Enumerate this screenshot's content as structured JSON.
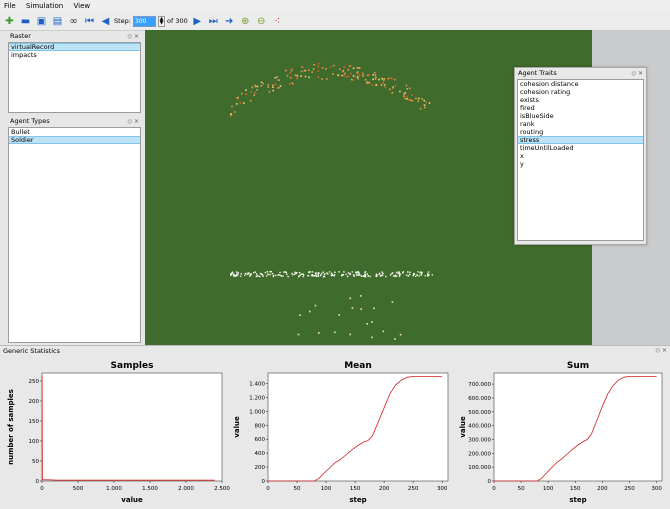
{
  "menu": {
    "file": "File",
    "simulation": "Simulation",
    "view": "View"
  },
  "toolbar": {
    "step_label": "Step:",
    "step_value": "300",
    "of_label": "of 300"
  },
  "raster_panel": {
    "title": "Raster",
    "items": [
      {
        "label": "virtualRecord",
        "selected": true
      },
      {
        "label": "impacts",
        "selected": false
      }
    ]
  },
  "agent_types_panel": {
    "title": "Agent Types",
    "items": [
      {
        "label": "Bullet",
        "selected": false
      },
      {
        "label": "Soldier",
        "selected": true
      }
    ]
  },
  "agent_traits_panel": {
    "title": "Agent Traits",
    "items": [
      {
        "label": "cohesion distance",
        "selected": false
      },
      {
        "label": "cohesion rating",
        "selected": false
      },
      {
        "label": "exists",
        "selected": false
      },
      {
        "label": "fired",
        "selected": false
      },
      {
        "label": "isBlueSide",
        "selected": false
      },
      {
        "label": "rank",
        "selected": false
      },
      {
        "label": "routing",
        "selected": false
      },
      {
        "label": "stress",
        "selected": true
      },
      {
        "label": "timeUntilLoaded",
        "selected": false
      },
      {
        "label": "x",
        "selected": false
      },
      {
        "label": "y",
        "selected": false
      }
    ]
  },
  "stats_panel": {
    "title": "Generic Statistics"
  },
  "colors": {
    "sim_background": "#3f6b2c",
    "line": "#d42020",
    "selection": "#bde3f7"
  },
  "chart_data": [
    {
      "type": "line",
      "title": "Samples",
      "xlabel": "value",
      "ylabel": "number of samples",
      "xlim": [
        0,
        2500
      ],
      "ylim": [
        0,
        270
      ],
      "xticks": [
        0,
        500,
        1000,
        1500,
        2000,
        2500
      ],
      "xtick_labels": [
        "0",
        "500",
        "1.000",
        "1.500",
        "2.000",
        "2.500"
      ],
      "yticks": [
        0,
        50,
        100,
        150,
        200,
        250
      ],
      "ytick_labels": [
        "0",
        "50",
        "100",
        "150",
        "200",
        "250"
      ],
      "x": [
        0,
        2,
        5,
        10,
        20,
        50,
        100,
        200,
        400,
        600,
        800,
        1000,
        1200,
        1400,
        1600,
        1800,
        2000,
        2200,
        2400
      ],
      "y": [
        262,
        262,
        4,
        3,
        3,
        3,
        3,
        2,
        2,
        2,
        2,
        2,
        2,
        2,
        2,
        2,
        2,
        2,
        2
      ]
    },
    {
      "type": "line",
      "title": "Mean",
      "xlabel": "step",
      "ylabel": "value",
      "xlim": [
        0,
        310
      ],
      "ylim": [
        0,
        1550
      ],
      "xticks": [
        0,
        50,
        100,
        150,
        200,
        250,
        300
      ],
      "xtick_labels": [
        "0",
        "50",
        "100",
        "150",
        "200",
        "250",
        "300"
      ],
      "yticks": [
        0,
        200,
        400,
        600,
        800,
        1000,
        1200,
        1400
      ],
      "ytick_labels": [
        "0",
        "200",
        "400",
        "600",
        "800",
        "1.000",
        "1.200",
        "1.400"
      ],
      "x": [
        0,
        40,
        80,
        88,
        95,
        105,
        115,
        125,
        135,
        145,
        155,
        165,
        172,
        180,
        190,
        200,
        210,
        220,
        230,
        240,
        250,
        260,
        270,
        280,
        290,
        300
      ],
      "y": [
        0,
        0,
        0,
        40,
        100,
        180,
        260,
        310,
        380,
        450,
        510,
        560,
        580,
        650,
        850,
        1050,
        1250,
        1380,
        1450,
        1490,
        1500,
        1500,
        1500,
        1500,
        1500,
        1500
      ]
    },
    {
      "type": "line",
      "title": "Sum",
      "xlabel": "step",
      "ylabel": "value",
      "xlim": [
        0,
        310
      ],
      "ylim": [
        0,
        780000
      ],
      "xticks": [
        0,
        50,
        100,
        150,
        200,
        250,
        300
      ],
      "xtick_labels": [
        "0",
        "50",
        "100",
        "150",
        "200",
        "250",
        "300"
      ],
      "yticks": [
        0,
        100000,
        200000,
        300000,
        400000,
        500000,
        600000,
        700000
      ],
      "ytick_labels": [
        "0",
        "100.000",
        "200.000",
        "300.000",
        "400.000",
        "500.000",
        "600.000",
        "700.000"
      ],
      "x": [
        0,
        40,
        80,
        88,
        95,
        105,
        115,
        125,
        135,
        145,
        155,
        165,
        172,
        180,
        190,
        200,
        210,
        220,
        230,
        240,
        250,
        260,
        270,
        280,
        290,
        300
      ],
      "y": [
        0,
        0,
        0,
        20000,
        50000,
        90000,
        130000,
        160000,
        195000,
        230000,
        260000,
        285000,
        300000,
        340000,
        440000,
        540000,
        630000,
        690000,
        730000,
        750000,
        755000,
        755000,
        755000,
        755000,
        755000,
        755000
      ]
    }
  ]
}
